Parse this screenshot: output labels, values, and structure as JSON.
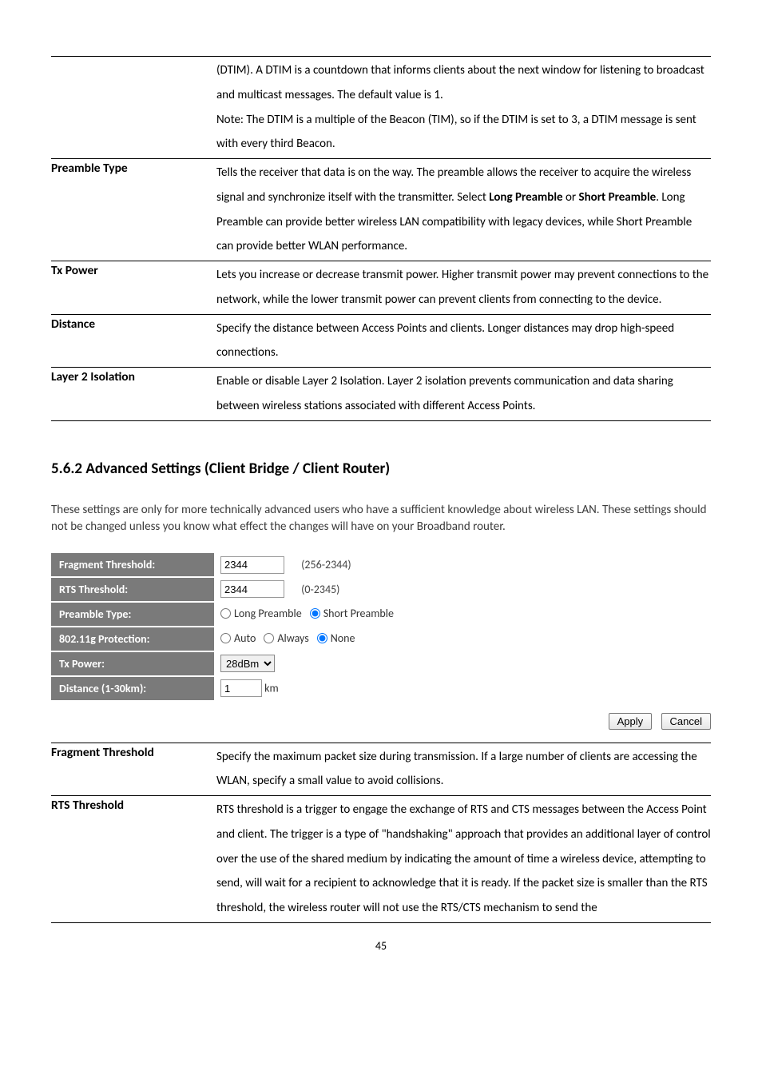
{
  "defs_top": [
    {
      "label": "",
      "desc": "(DTIM). A DTIM is a countdown that informs clients about the next window for listening to broadcast and multicast messages. The default value is 1.<br>Note: The DTIM is a multiple of the Beacon (TIM), so if the DTIM is set to 3, a DTIM message is sent with every third Beacon."
    },
    {
      "label": "Preamble Type",
      "desc": "Tells the receiver that data is on the way. The preamble allows the receiver to acquire the wireless signal and synchronize itself with the transmitter. Select <b>Long Preamble</b> or <b>Short Preamble</b>. Long Preamble can provide better wireless LAN compatibility with legacy devices, while Short Preamble can provide better WLAN performance."
    },
    {
      "label": "Tx Power",
      "desc": "Lets you increase or decrease transmit power. Higher transmit power may prevent connections to the network, while the lower transmit power can prevent clients from connecting to the device."
    },
    {
      "label": "Distance",
      "desc": "Specify the distance between Access Points and clients. Longer distances may drop high-speed connections."
    },
    {
      "label": "Layer 2 Isolation",
      "desc": "Enable or disable Layer 2 Isolation. Layer 2 isolation prevents communication and data sharing between wireless stations associated with different Access Points."
    }
  ],
  "section_heading": "5.6.2 Advanced Settings (Client Bridge / Client Router)",
  "form_intro": "These settings are only for more technically advanced users who have a sufficient knowledge about wireless LAN. These settings should not be changed unless you know what effect the changes will have on your Broadband router.",
  "form": {
    "fragment": {
      "label": "Fragment Threshold:",
      "value": "2344",
      "hint": "(256-2344)"
    },
    "rts": {
      "label": "RTS Threshold:",
      "value": "2344",
      "hint": "(0-2345)"
    },
    "preamble": {
      "label": "Preamble Type:",
      "opts": [
        {
          "label": "Long Preamble",
          "checked": false
        },
        {
          "label": "Short Preamble",
          "checked": true
        }
      ]
    },
    "protection": {
      "label": "802.11g Protection:",
      "opts": [
        {
          "label": "Auto",
          "checked": false
        },
        {
          "label": "Always",
          "checked": false
        },
        {
          "label": "None",
          "checked": true
        }
      ]
    },
    "txpower": {
      "label": "Tx Power:",
      "value": "28dBm"
    },
    "distance": {
      "label": "Distance (1-30km):",
      "value": "1",
      "unit": "km"
    }
  },
  "buttons": {
    "apply": "Apply",
    "cancel": "Cancel"
  },
  "defs_bottom": [
    {
      "label": "Fragment Threshold",
      "desc": "Specify the maximum packet size during transmission. If a large number of clients are accessing the WLAN, specify a small value to avoid collisions."
    },
    {
      "label": "RTS Threshold",
      "desc": "RTS threshold is a trigger to engage the exchange of RTS and CTS messages between the Access Point and client. The trigger is a type of \"handshaking\" approach that provides an additional layer of control over the use of the shared medium by indicating the amount of time a wireless device, attempting to send, will wait for a recipient to acknowledge that it is ready. If the packet size is smaller than the RTS threshold, the wireless router will not use the RTS/CTS mechanism to send the"
    }
  ],
  "page_number": "45"
}
